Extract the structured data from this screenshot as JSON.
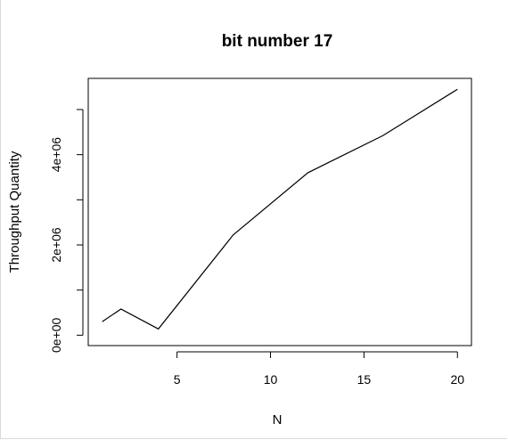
{
  "chart_data": {
    "type": "line",
    "title": "bit number 17",
    "xlabel": "N",
    "ylabel": "Throughput Quantity",
    "x": [
      1,
      2,
      4,
      8,
      12,
      16,
      20
    ],
    "series": [
      {
        "values": [
          300000,
          580000,
          140000,
          2220000,
          3600000,
          4420000,
          5450000
        ]
      }
    ],
    "xlim": [
      0.25,
      20.75
    ],
    "ylim": [
      -230000,
      5690000
    ],
    "xticks": [
      5,
      10,
      15,
      20
    ],
    "xtick_labels": [
      "5",
      "10",
      "15",
      "20"
    ],
    "yticks": [
      0,
      2000000,
      4000000
    ],
    "ytick_labels": [
      "0e+00",
      "2e+06",
      "4e+06"
    ],
    "yminor_ticks": [
      1000000,
      3000000,
      5000000
    ],
    "grid": false,
    "line_color": "#000000"
  }
}
